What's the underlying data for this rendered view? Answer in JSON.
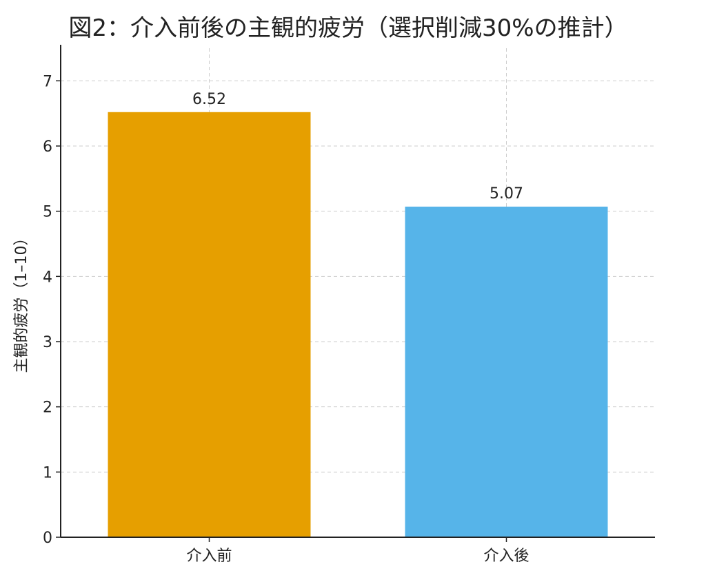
{
  "chart_data": {
    "type": "bar",
    "title": "図2：介入前後の主観的疲労（選択削減30%の推計）",
    "xlabel": "",
    "ylabel": "主観的疲労（1–10）",
    "categories": [
      "介入前",
      "介入後"
    ],
    "values": [
      6.52,
      5.07
    ],
    "value_labels": [
      "6.52",
      "5.07"
    ],
    "colors": [
      "#E69F00",
      "#56B4E9"
    ],
    "ylim": [
      0,
      7.5
    ],
    "yticks": [
      0,
      1,
      2,
      3,
      4,
      5,
      6,
      7
    ],
    "grid": true,
    "legend": "none"
  }
}
